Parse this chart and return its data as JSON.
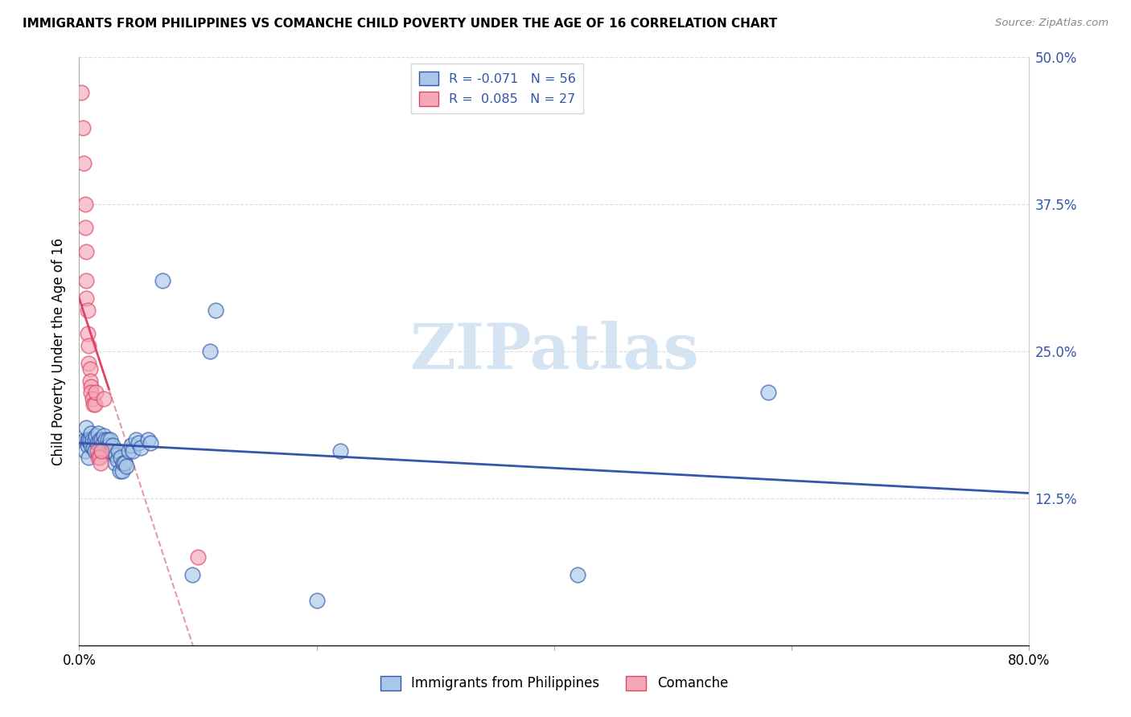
{
  "title": "IMMIGRANTS FROM PHILIPPINES VS COMANCHE CHILD POVERTY UNDER THE AGE OF 16 CORRELATION CHART",
  "source": "Source: ZipAtlas.com",
  "ylabel": "Child Poverty Under the Age of 16",
  "xmin": 0.0,
  "xmax": 0.8,
  "ymin": 0.0,
  "ymax": 0.5,
  "yticks": [
    0.0,
    0.125,
    0.25,
    0.375,
    0.5
  ],
  "ytick_labels": [
    "",
    "12.5%",
    "25.0%",
    "37.5%",
    "50.0%"
  ],
  "xticks": [
    0.0,
    0.2,
    0.4,
    0.6,
    0.8
  ],
  "xtick_labels": [
    "0.0%",
    "",
    "",
    "",
    "80.0%"
  ],
  "color_blue": "#a8c8e8",
  "color_pink": "#f4a8b8",
  "line_blue": "#3355aa",
  "line_pink": "#dd4466",
  "watermark_color": "#cde0f0",
  "blue_scatter": [
    [
      0.005,
      0.175
    ],
    [
      0.005,
      0.165
    ],
    [
      0.006,
      0.185
    ],
    [
      0.007,
      0.17
    ],
    [
      0.007,
      0.175
    ],
    [
      0.008,
      0.175
    ],
    [
      0.008,
      0.16
    ],
    [
      0.009,
      0.175
    ],
    [
      0.01,
      0.18
    ],
    [
      0.01,
      0.17
    ],
    [
      0.011,
      0.175
    ],
    [
      0.012,
      0.168
    ],
    [
      0.013,
      0.175
    ],
    [
      0.013,
      0.165
    ],
    [
      0.014,
      0.178
    ],
    [
      0.015,
      0.172
    ],
    [
      0.016,
      0.18
    ],
    [
      0.017,
      0.175
    ],
    [
      0.018,
      0.168
    ],
    [
      0.019,
      0.175
    ],
    [
      0.02,
      0.172
    ],
    [
      0.021,
      0.178
    ],
    [
      0.022,
      0.175
    ],
    [
      0.022,
      0.168
    ],
    [
      0.024,
      0.175
    ],
    [
      0.024,
      0.165
    ],
    [
      0.025,
      0.17
    ],
    [
      0.026,
      0.175
    ],
    [
      0.027,
      0.165
    ],
    [
      0.028,
      0.17
    ],
    [
      0.03,
      0.155
    ],
    [
      0.031,
      0.162
    ],
    [
      0.032,
      0.158
    ],
    [
      0.033,
      0.165
    ],
    [
      0.034,
      0.148
    ],
    [
      0.035,
      0.16
    ],
    [
      0.036,
      0.148
    ],
    [
      0.037,
      0.155
    ],
    [
      0.038,
      0.155
    ],
    [
      0.04,
      0.152
    ],
    [
      0.042,
      0.165
    ],
    [
      0.044,
      0.17
    ],
    [
      0.045,
      0.165
    ],
    [
      0.048,
      0.175
    ],
    [
      0.05,
      0.172
    ],
    [
      0.052,
      0.168
    ],
    [
      0.058,
      0.175
    ],
    [
      0.06,
      0.172
    ],
    [
      0.07,
      0.31
    ],
    [
      0.095,
      0.06
    ],
    [
      0.11,
      0.25
    ],
    [
      0.115,
      0.285
    ],
    [
      0.2,
      0.038
    ],
    [
      0.22,
      0.165
    ],
    [
      0.42,
      0.06
    ],
    [
      0.58,
      0.215
    ]
  ],
  "pink_scatter": [
    [
      0.002,
      0.47
    ],
    [
      0.003,
      0.44
    ],
    [
      0.004,
      0.41
    ],
    [
      0.005,
      0.375
    ],
    [
      0.005,
      0.355
    ],
    [
      0.006,
      0.335
    ],
    [
      0.006,
      0.31
    ],
    [
      0.006,
      0.295
    ],
    [
      0.007,
      0.285
    ],
    [
      0.007,
      0.265
    ],
    [
      0.008,
      0.255
    ],
    [
      0.008,
      0.24
    ],
    [
      0.009,
      0.235
    ],
    [
      0.009,
      0.225
    ],
    [
      0.01,
      0.22
    ],
    [
      0.01,
      0.215
    ],
    [
      0.011,
      0.21
    ],
    [
      0.012,
      0.205
    ],
    [
      0.013,
      0.205
    ],
    [
      0.014,
      0.215
    ],
    [
      0.015,
      0.165
    ],
    [
      0.016,
      0.16
    ],
    [
      0.017,
      0.16
    ],
    [
      0.018,
      0.155
    ],
    [
      0.019,
      0.165
    ],
    [
      0.021,
      0.21
    ],
    [
      0.1,
      0.075
    ]
  ]
}
